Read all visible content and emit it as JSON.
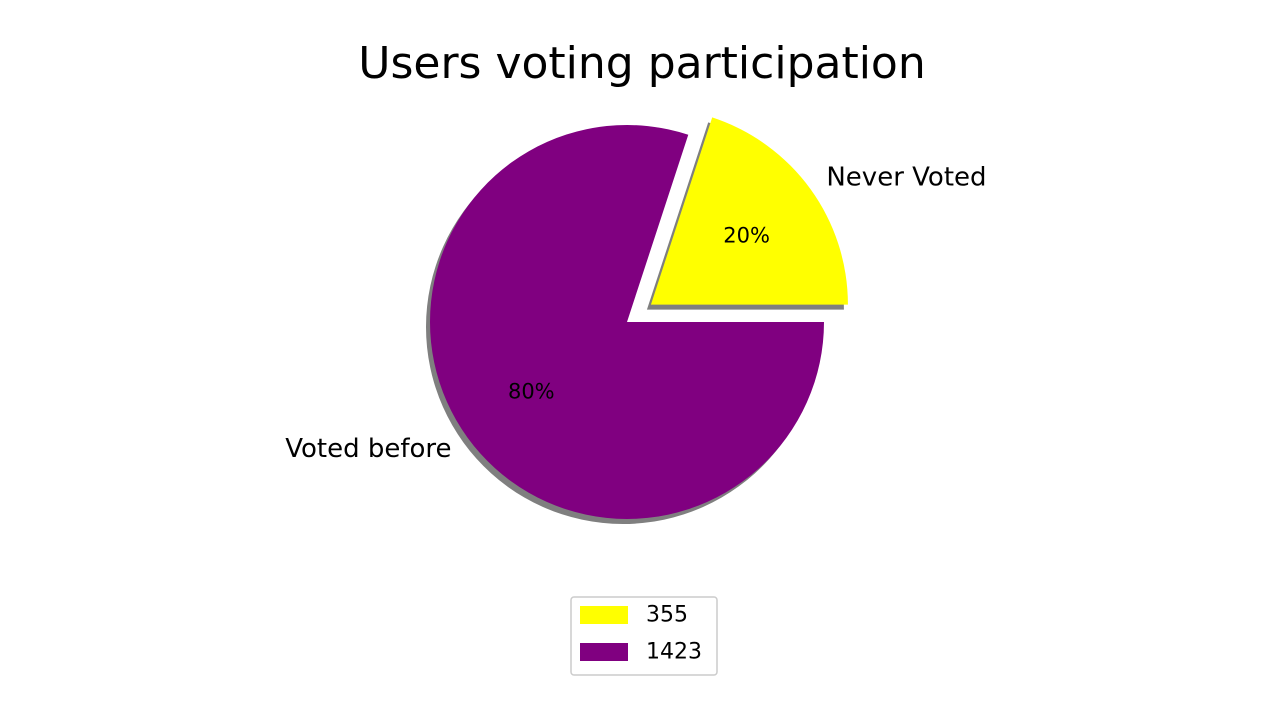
{
  "chart_data": {
    "type": "pie",
    "title": "Users voting participation",
    "slices": [
      {
        "label": "Never Voted",
        "value": 355,
        "percent_label": "20%",
        "legend_label": "355",
        "color": "#ffff00",
        "exploded": true
      },
      {
        "label": "Voted before",
        "value": 1423,
        "percent_label": "80%",
        "legend_label": "1423",
        "color": "#800080",
        "exploded": false
      }
    ],
    "shadow": true,
    "legend_position": "bottom-center"
  }
}
